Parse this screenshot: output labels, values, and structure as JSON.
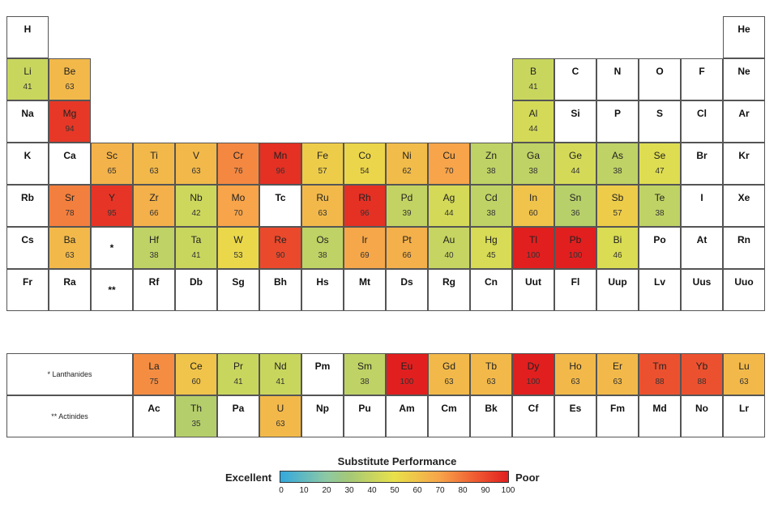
{
  "lanthanides_label": "* Lanthanides",
  "actinides_label": "** Actinides",
  "lanthanide_marker": "*",
  "actinide_marker": "**",
  "legend": {
    "title": "Substitute Performance",
    "left_label": "Excellent",
    "right_label": "Poor",
    "ticks": [
      "0",
      "10",
      "20",
      "30",
      "40",
      "50",
      "60",
      "70",
      "80",
      "90",
      "100"
    ]
  },
  "elements": [
    {
      "s": "H",
      "r": 1,
      "c": 1
    },
    {
      "s": "He",
      "r": 1,
      "c": 18
    },
    {
      "s": "Li",
      "r": 2,
      "c": 1,
      "v": 41
    },
    {
      "s": "Be",
      "r": 2,
      "c": 2,
      "v": 63
    },
    {
      "s": "B",
      "r": 2,
      "c": 13,
      "v": 41
    },
    {
      "s": "C",
      "r": 2,
      "c": 14
    },
    {
      "s": "N",
      "r": 2,
      "c": 15
    },
    {
      "s": "O",
      "r": 2,
      "c": 16
    },
    {
      "s": "F",
      "r": 2,
      "c": 17
    },
    {
      "s": "Ne",
      "r": 2,
      "c": 18
    },
    {
      "s": "Na",
      "r": 3,
      "c": 1
    },
    {
      "s": "Mg",
      "r": 3,
      "c": 2,
      "v": 94
    },
    {
      "s": "Al",
      "r": 3,
      "c": 13,
      "v": 44
    },
    {
      "s": "Si",
      "r": 3,
      "c": 14
    },
    {
      "s": "P",
      "r": 3,
      "c": 15
    },
    {
      "s": "S",
      "r": 3,
      "c": 16
    },
    {
      "s": "Cl",
      "r": 3,
      "c": 17
    },
    {
      "s": "Ar",
      "r": 3,
      "c": 18
    },
    {
      "s": "K",
      "r": 4,
      "c": 1
    },
    {
      "s": "Ca",
      "r": 4,
      "c": 2
    },
    {
      "s": "Sc",
      "r": 4,
      "c": 3,
      "v": 65
    },
    {
      "s": "Ti",
      "r": 4,
      "c": 4,
      "v": 63
    },
    {
      "s": "V",
      "r": 4,
      "c": 5,
      "v": 63
    },
    {
      "s": "Cr",
      "r": 4,
      "c": 6,
      "v": 76
    },
    {
      "s": "Mn",
      "r": 4,
      "c": 7,
      "v": 96
    },
    {
      "s": "Fe",
      "r": 4,
      "c": 8,
      "v": 57
    },
    {
      "s": "Co",
      "r": 4,
      "c": 9,
      "v": 54
    },
    {
      "s": "Ni",
      "r": 4,
      "c": 10,
      "v": 62
    },
    {
      "s": "Cu",
      "r": 4,
      "c": 11,
      "v": 70
    },
    {
      "s": "Zn",
      "r": 4,
      "c": 12,
      "v": 38
    },
    {
      "s": "Ga",
      "r": 4,
      "c": 13,
      "v": 38
    },
    {
      "s": "Ge",
      "r": 4,
      "c": 14,
      "v": 44
    },
    {
      "s": "As",
      "r": 4,
      "c": 15,
      "v": 38
    },
    {
      "s": "Se",
      "r": 4,
      "c": 16,
      "v": 47
    },
    {
      "s": "Br",
      "r": 4,
      "c": 17
    },
    {
      "s": "Kr",
      "r": 4,
      "c": 18
    },
    {
      "s": "Rb",
      "r": 5,
      "c": 1
    },
    {
      "s": "Sr",
      "r": 5,
      "c": 2,
      "v": 78
    },
    {
      "s": "Y",
      "r": 5,
      "c": 3,
      "v": 95
    },
    {
      "s": "Zr",
      "r": 5,
      "c": 4,
      "v": 66
    },
    {
      "s": "Nb",
      "r": 5,
      "c": 5,
      "v": 42
    },
    {
      "s": "Mo",
      "r": 5,
      "c": 6,
      "v": 70
    },
    {
      "s": "Tc",
      "r": 5,
      "c": 7
    },
    {
      "s": "Ru",
      "r": 5,
      "c": 8,
      "v": 63
    },
    {
      "s": "Rh",
      "r": 5,
      "c": 9,
      "v": 96
    },
    {
      "s": "Pd",
      "r": 5,
      "c": 10,
      "v": 39
    },
    {
      "s": "Ag",
      "r": 5,
      "c": 11,
      "v": 44
    },
    {
      "s": "Cd",
      "r": 5,
      "c": 12,
      "v": 38
    },
    {
      "s": "In",
      "r": 5,
      "c": 13,
      "v": 60
    },
    {
      "s": "Sn",
      "r": 5,
      "c": 14,
      "v": 36
    },
    {
      "s": "Sb",
      "r": 5,
      "c": 15,
      "v": 57
    },
    {
      "s": "Te",
      "r": 5,
      "c": 16,
      "v": 38
    },
    {
      "s": "I",
      "r": 5,
      "c": 17
    },
    {
      "s": "Xe",
      "r": 5,
      "c": 18
    },
    {
      "s": "Cs",
      "r": 6,
      "c": 1
    },
    {
      "s": "Ba",
      "r": 6,
      "c": 2,
      "v": 63
    },
    {
      "s": "Hf",
      "r": 6,
      "c": 4,
      "v": 38
    },
    {
      "s": "Ta",
      "r": 6,
      "c": 5,
      "v": 41
    },
    {
      "s": "W",
      "r": 6,
      "c": 6,
      "v": 53
    },
    {
      "s": "Re",
      "r": 6,
      "c": 7,
      "v": 90
    },
    {
      "s": "Os",
      "r": 6,
      "c": 8,
      "v": 38
    },
    {
      "s": "Ir",
      "r": 6,
      "c": 9,
      "v": 69
    },
    {
      "s": "Pt",
      "r": 6,
      "c": 10,
      "v": 66
    },
    {
      "s": "Au",
      "r": 6,
      "c": 11,
      "v": 40
    },
    {
      "s": "Hg",
      "r": 6,
      "c": 12,
      "v": 45
    },
    {
      "s": "Tl",
      "r": 6,
      "c": 13,
      "v": 100
    },
    {
      "s": "Pb",
      "r": 6,
      "c": 14,
      "v": 100
    },
    {
      "s": "Bi",
      "r": 6,
      "c": 15,
      "v": 46
    },
    {
      "s": "Po",
      "r": 6,
      "c": 16
    },
    {
      "s": "At",
      "r": 6,
      "c": 17
    },
    {
      "s": "Rn",
      "r": 6,
      "c": 18
    },
    {
      "s": "Fr",
      "r": 7,
      "c": 1
    },
    {
      "s": "Ra",
      "r": 7,
      "c": 2
    },
    {
      "s": "Rf",
      "r": 7,
      "c": 4
    },
    {
      "s": "Db",
      "r": 7,
      "c": 5
    },
    {
      "s": "Sg",
      "r": 7,
      "c": 6
    },
    {
      "s": "Bh",
      "r": 7,
      "c": 7
    },
    {
      "s": "Hs",
      "r": 7,
      "c": 8
    },
    {
      "s": "Mt",
      "r": 7,
      "c": 9
    },
    {
      "s": "Ds",
      "r": 7,
      "c": 10
    },
    {
      "s": "Rg",
      "r": 7,
      "c": 11
    },
    {
      "s": "Cn",
      "r": 7,
      "c": 12
    },
    {
      "s": "Uut",
      "r": 7,
      "c": 13
    },
    {
      "s": "Fl",
      "r": 7,
      "c": 14
    },
    {
      "s": "Uup",
      "r": 7,
      "c": 15
    },
    {
      "s": "Lv",
      "r": 7,
      "c": 16
    },
    {
      "s": "Uus",
      "r": 7,
      "c": 17
    },
    {
      "s": "Uuo",
      "r": 7,
      "c": 18
    },
    {
      "s": "La",
      "r": 9,
      "c": 4,
      "v": 75
    },
    {
      "s": "Ce",
      "r": 9,
      "c": 5,
      "v": 60
    },
    {
      "s": "Pr",
      "r": 9,
      "c": 6,
      "v": 41
    },
    {
      "s": "Nd",
      "r": 9,
      "c": 7,
      "v": 41
    },
    {
      "s": "Pm",
      "r": 9,
      "c": 8
    },
    {
      "s": "Sm",
      "r": 9,
      "c": 9,
      "v": 38
    },
    {
      "s": "Eu",
      "r": 9,
      "c": 10,
      "v": 100
    },
    {
      "s": "Gd",
      "r": 9,
      "c": 11,
      "v": 63
    },
    {
      "s": "Tb",
      "r": 9,
      "c": 12,
      "v": 63
    },
    {
      "s": "Dy",
      "r": 9,
      "c": 13,
      "v": 100
    },
    {
      "s": "Ho",
      "r": 9,
      "c": 14,
      "v": 63
    },
    {
      "s": "Er",
      "r": 9,
      "c": 15,
      "v": 63
    },
    {
      "s": "Tm",
      "r": 9,
      "c": 16,
      "v": 88
    },
    {
      "s": "Yb",
      "r": 9,
      "c": 17,
      "v": 88
    },
    {
      "s": "Lu",
      "r": 9,
      "c": 18,
      "v": 63
    },
    {
      "s": "Ac",
      "r": 10,
      "c": 4
    },
    {
      "s": "Th",
      "r": 10,
      "c": 5,
      "v": 35
    },
    {
      "s": "Pa",
      "r": 10,
      "c": 6
    },
    {
      "s": "U",
      "r": 10,
      "c": 7,
      "v": 63
    },
    {
      "s": "Np",
      "r": 10,
      "c": 8
    },
    {
      "s": "Pu",
      "r": 10,
      "c": 9
    },
    {
      "s": "Am",
      "r": 10,
      "c": 10
    },
    {
      "s": "Cm",
      "r": 10,
      "c": 11
    },
    {
      "s": "Bk",
      "r": 10,
      "c": 12
    },
    {
      "s": "Cf",
      "r": 10,
      "c": 13
    },
    {
      "s": "Es",
      "r": 10,
      "c": 14
    },
    {
      "s": "Fm",
      "r": 10,
      "c": 15
    },
    {
      "s": "Md",
      "r": 10,
      "c": 16
    },
    {
      "s": "No",
      "r": 10,
      "c": 17
    },
    {
      "s": "Lr",
      "r": 10,
      "c": 18
    }
  ]
}
